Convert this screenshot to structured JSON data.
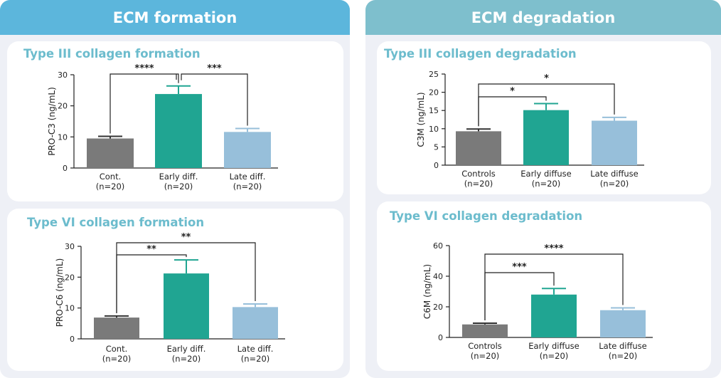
{
  "colors": {
    "left_header": "#5cb6dc",
    "right_header": "#7ebfcd",
    "title": "#6cbccd",
    "controls": "#7a7a7a",
    "early": "#20a592",
    "late": "#97bfda"
  },
  "headers": {
    "left": "ECM formation",
    "right": "ECM degradation"
  },
  "chart_data": [
    {
      "type": "bar",
      "title": "Type III collagen formation",
      "ylabel": "PRO-C3 (ng/mL)",
      "ylim": [
        0,
        30
      ],
      "yticks": [
        "0",
        "10",
        "20",
        "30"
      ],
      "categories": [
        "Cont.",
        "Early diff.",
        "Late diff."
      ],
      "category_n": [
        "(n=20)",
        "(n=20)",
        "(n=20)"
      ],
      "values": [
        9.5,
        23.8,
        11.6
      ],
      "errors": [
        0.7,
        2.6,
        1.1
      ],
      "significance": [
        {
          "from": 0,
          "to": 1,
          "label": "****"
        },
        {
          "from": 1,
          "to": 2,
          "label": "***"
        }
      ]
    },
    {
      "type": "bar",
      "title": "Type VI collagen formation",
      "ylabel": "PRO-C6 (ng/mL)",
      "ylim": [
        0,
        30
      ],
      "yticks": [
        "0",
        "10",
        "20",
        "30"
      ],
      "categories": [
        "Cont.",
        "Early diff.",
        "Late diff."
      ],
      "category_n": [
        "(n=20)",
        "(n=20)",
        "(n=20)"
      ],
      "values": [
        6.9,
        21.2,
        10.3
      ],
      "errors": [
        0.5,
        4.4,
        1.0
      ],
      "significance": [
        {
          "from": 0,
          "to": 1,
          "label": "**"
        },
        {
          "from": 0,
          "to": 2,
          "label": "**"
        }
      ]
    },
    {
      "type": "bar",
      "title": "Type III collagen degradation",
      "ylabel": "C3M (ng/mL)",
      "ylim": [
        0,
        25
      ],
      "yticks": [
        "0",
        "5",
        "10",
        "15",
        "20",
        "25"
      ],
      "categories": [
        "Controls",
        "Early diffuse",
        "Late diffuse"
      ],
      "category_n": [
        "(n=20)",
        "(n=20)",
        "(n=20)"
      ],
      "values": [
        9.3,
        15.1,
        12.2
      ],
      "errors": [
        0.6,
        1.8,
        0.9
      ],
      "significance": [
        {
          "from": 0,
          "to": 1,
          "label": "*"
        },
        {
          "from": 0,
          "to": 2,
          "label": "*"
        }
      ]
    },
    {
      "type": "bar",
      "title": "Type VI collagen degradation",
      "ylabel": "C6M (ng/mL)",
      "ylim": [
        0,
        60
      ],
      "yticks": [
        "0",
        "20",
        "40",
        "60"
      ],
      "categories": [
        "Controls",
        "Early diffuse",
        "Late diffuse"
      ],
      "category_n": [
        "(n=20)",
        "(n=20)",
        "(n=20)"
      ],
      "values": [
        8.5,
        28.0,
        17.8
      ],
      "errors": [
        0.8,
        4.0,
        1.5
      ],
      "significance": [
        {
          "from": 0,
          "to": 1,
          "label": "***"
        },
        {
          "from": 0,
          "to": 2,
          "label": "****"
        }
      ]
    }
  ]
}
